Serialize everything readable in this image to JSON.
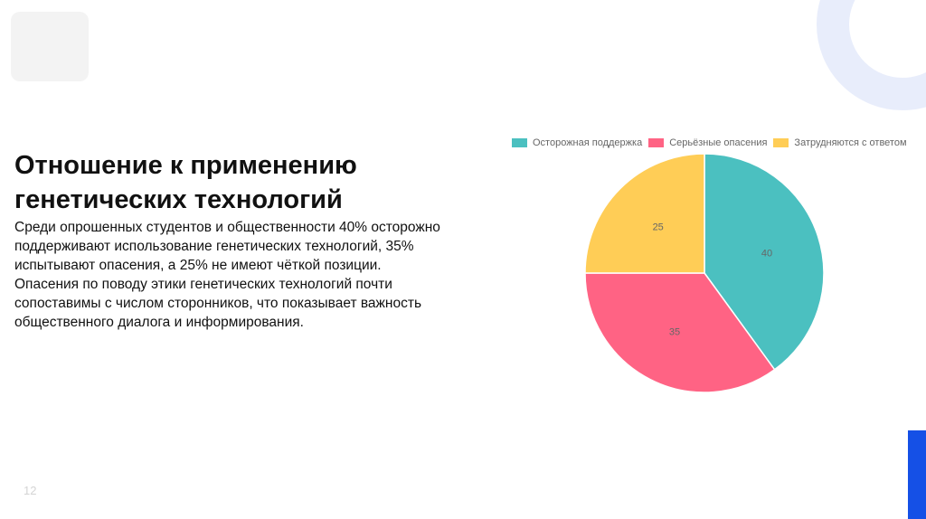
{
  "slide": {
    "title": "Отношение к применению генетических технологий",
    "paragraphs": [
      "Среди опрошенных студентов и общественности 40% осторожно поддерживают использование генетических технологий, 35% испытывают опасения, а 25% не имеют чёткой позиции.",
      "Опасения по поводу этики генетических технологий почти сопоставимы с числом сторонников, что показывает важность общественного диалога и информирования."
    ],
    "page_number": "12"
  },
  "colors": {
    "accent_blue": "#1550e6",
    "ring": "#e8edfb"
  },
  "chart_data": {
    "type": "pie",
    "categories": [
      "Осторожная поддержка",
      "Серьёзные опасения",
      "Затрудняются с ответом"
    ],
    "values": [
      40,
      35,
      25
    ],
    "colors": [
      "#4bc0c0",
      "#ff6384",
      "#ffcd56"
    ],
    "data_labels": [
      "40",
      "35",
      "25"
    ],
    "legend_position": "top"
  }
}
